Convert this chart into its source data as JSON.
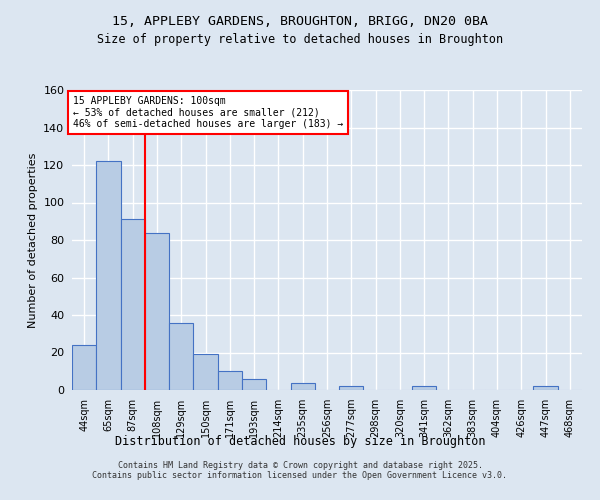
{
  "title_line1": "15, APPLEBY GARDENS, BROUGHTON, BRIGG, DN20 0BA",
  "title_line2": "Size of property relative to detached houses in Broughton",
  "xlabel": "Distribution of detached houses by size in Broughton",
  "ylabel": "Number of detached properties",
  "categories": [
    "44sqm",
    "65sqm",
    "87sqm",
    "108sqm",
    "129sqm",
    "150sqm",
    "171sqm",
    "193sqm",
    "214sqm",
    "235sqm",
    "256sqm",
    "277sqm",
    "298sqm",
    "320sqm",
    "341sqm",
    "362sqm",
    "383sqm",
    "404sqm",
    "426sqm",
    "447sqm",
    "468sqm"
  ],
  "values": [
    24,
    122,
    91,
    84,
    36,
    19,
    10,
    6,
    0,
    4,
    0,
    2,
    0,
    0,
    2,
    0,
    0,
    0,
    0,
    2,
    0
  ],
  "bar_color": "#b8cce4",
  "bar_edge_color": "#4472c4",
  "background_color": "#dce6f1",
  "grid_color": "#ffffff",
  "vline_color": "#ff0000",
  "vline_x": 2.5,
  "annotation_text_line1": "15 APPLEBY GARDENS: 100sqm",
  "annotation_text_line2": "← 53% of detached houses are smaller (212)",
  "annotation_text_line3": "46% of semi-detached houses are larger (183) →",
  "annotation_box_color": "#ff0000",
  "ylim": [
    0,
    160
  ],
  "yticks": [
    0,
    20,
    40,
    60,
    80,
    100,
    120,
    140,
    160
  ],
  "footer_line1": "Contains HM Land Registry data © Crown copyright and database right 2025.",
  "footer_line2": "Contains public sector information licensed under the Open Government Licence v3.0."
}
